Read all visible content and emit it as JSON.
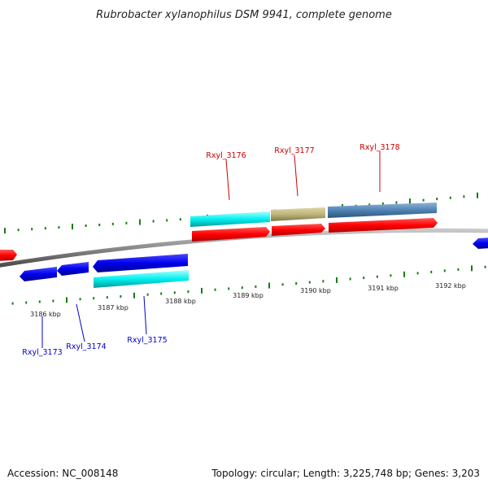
{
  "title": "Rubrobacter xylanophilus DSM 9941, complete genome",
  "footer": {
    "accession": "Accession: NC_008148",
    "summary": "Topology: circular; Length: 3,225,748 bp; Genes: 3,203"
  },
  "colors": {
    "forward_label": "#cc0000",
    "reverse_label": "#0000cc",
    "tick_minor": "#1a7a1a",
    "backbone": "#888888"
  },
  "ticks": [
    {
      "label": "3186 kbp"
    },
    {
      "label": "3187 kbp"
    },
    {
      "label": "3188 kbp"
    },
    {
      "label": "3189 kbp"
    },
    {
      "label": "3190 kbp"
    },
    {
      "label": "3191 kbp"
    },
    {
      "label": "3192 kbp"
    }
  ],
  "gene_labels": [
    {
      "name": "Rxyl_3173",
      "strand": "reverse"
    },
    {
      "name": "Rxyl_3174",
      "strand": "reverse"
    },
    {
      "name": "Rxyl_3175",
      "strand": "reverse"
    },
    {
      "name": "Rxyl_3176",
      "strand": "forward"
    },
    {
      "name": "Rxyl_3177",
      "strand": "forward"
    },
    {
      "name": "Rxyl_3178",
      "strand": "forward"
    }
  ]
}
